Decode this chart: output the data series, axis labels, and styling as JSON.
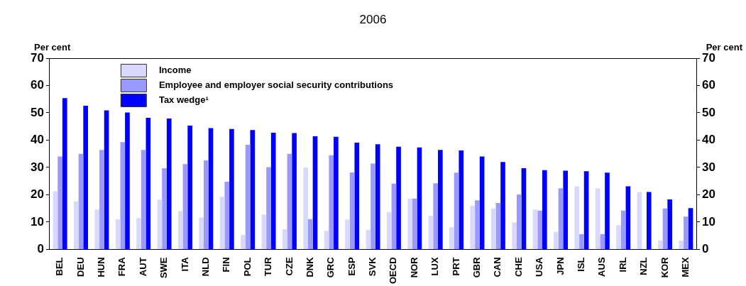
{
  "chart_data": {
    "type": "bar",
    "title": "2006",
    "ylabel": "Per cent",
    "y2label": "Per cent",
    "categories": [
      "BEL",
      "DEU",
      "HUN",
      "FRA",
      "AUT",
      "SWE",
      "ITA",
      "NLD",
      "FIN",
      "POL",
      "TUR",
      "CZE",
      "DNK",
      "GRC",
      "ESP",
      "SVK",
      "OECD",
      "NOR",
      "LUX",
      "PRT",
      "GBR",
      "CAN",
      "CHE",
      "USA",
      "JPN",
      "ISL",
      "AUS",
      "IRL",
      "NZL",
      "KOR",
      "MEX"
    ],
    "series": [
      {
        "name": "Income",
        "color": "#d9d9ff",
        "values": [
          21.3,
          17.6,
          14.6,
          11,
          11.5,
          18.2,
          14,
          11.7,
          19.3,
          5.3,
          12.8,
          7.4,
          30,
          6.8,
          10.9,
          7.1,
          13.6,
          18.6,
          12.3,
          8.1,
          16,
          15,
          9.9,
          14.6,
          6.4,
          23.1,
          22.4,
          8.9,
          21,
          3.2,
          3.2
        ]
      },
      {
        "name": "Employee and employer social security contributions",
        "color": "#9999ff",
        "values": [
          34,
          35,
          36.4,
          39.3,
          36.4,
          29.7,
          31.2,
          32.6,
          24.8,
          38.3,
          30.1,
          35,
          11.1,
          34.5,
          28.2,
          31.4,
          24.1,
          18.6,
          24.2,
          28.1,
          18,
          17,
          20.1,
          14.2,
          22.4,
          5.6,
          5.6,
          14.2,
          0,
          15,
          12
        ]
      },
      {
        "name": "Tax wedge¹",
        "color": "#0000ff",
        "values": [
          55.4,
          52.6,
          50.9,
          50.1,
          48.2,
          47.9,
          45.3,
          44.4,
          44.1,
          43.7,
          42.7,
          42.6,
          41.4,
          41.2,
          39.1,
          38.5,
          37.6,
          37.3,
          36.4,
          36.2,
          34,
          32,
          29.7,
          29,
          28.8,
          28.6,
          28.1,
          23.1,
          21,
          18.3,
          15.1
        ]
      }
    ],
    "ylim": [
      0,
      70
    ],
    "yticks": [
      0,
      10,
      20,
      30,
      40,
      50,
      60,
      70
    ],
    "y2lim": [
      0,
      70
    ],
    "y2ticks": [
      0,
      10,
      20,
      30,
      40,
      50,
      60,
      70
    ],
    "grid": false,
    "legend": "top left"
  }
}
